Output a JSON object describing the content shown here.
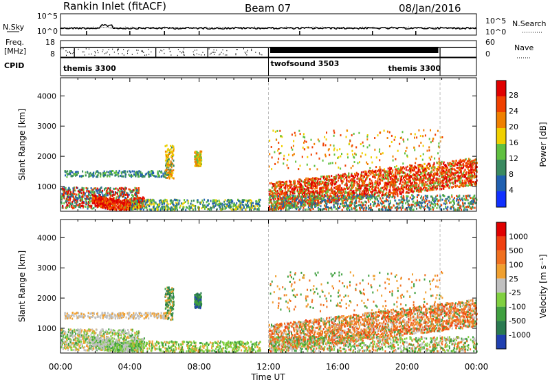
{
  "header": {
    "station": "Rankin Inlet (fitACF)",
    "beam": "Beam 07",
    "date": "08/Jan/2016"
  },
  "top_panel": {
    "left_label": "N.Sky",
    "right_label": "N.Search",
    "left_ticks": [
      "10^5",
      "10^0"
    ],
    "right_ticks": [
      "10^5",
      "10^0"
    ]
  },
  "freq_panel": {
    "left_label_1": "Freq.",
    "left_label_2": "[MHz]",
    "right_label": "Nave",
    "left_ticks": [
      "18",
      "8"
    ],
    "right_ticks": [
      "60",
      "0"
    ]
  },
  "cpid": {
    "label": "CPID",
    "segments": [
      {
        "name": "themis 3300",
        "start": 0,
        "end": 12
      },
      {
        "name": "twofsound 3503",
        "start": 12,
        "end": 21.9
      },
      {
        "name": "themis 3300",
        "start": 21.9,
        "end": 24
      }
    ]
  },
  "chart_data": [
    {
      "type": "heatmap",
      "title": "",
      "xlabel": "Time UT",
      "ylabel": "Slant Range [km]",
      "xlim": [
        0,
        24
      ],
      "ylim": [
        180,
        4600
      ],
      "x_tick_labels": [
        "00:00",
        "04:00",
        "08:00",
        "12:00",
        "16:00",
        "20:00",
        "00:00"
      ],
      "y_tick_labels": [
        "1000",
        "2000",
        "3000",
        "4000"
      ],
      "y_ticks": [
        1000,
        2000,
        3000,
        4000
      ],
      "colorbar": {
        "label": "Power [dB]",
        "tick_labels": [
          "4",
          "8",
          "12",
          "16",
          "20",
          "24",
          "28"
        ],
        "colors": [
          "#1030ff",
          "#2060b0",
          "#3a8a60",
          "#60c040",
          "#f0d000",
          "#f08000",
          "#f04000",
          "#e00000"
        ]
      },
      "dashed_vertical_lines_hours": [
        12,
        21.9
      ]
    },
    {
      "type": "heatmap",
      "title": "",
      "xlabel": "Time UT",
      "ylabel": "Slant Range [km]",
      "xlim": [
        0,
        24
      ],
      "ylim": [
        180,
        4600
      ],
      "x_tick_labels": [
        "00:00",
        "04:00",
        "08:00",
        "12:00",
        "16:00",
        "20:00",
        "00:00"
      ],
      "y_tick_labels": [
        "1000",
        "2000",
        "3000",
        "4000"
      ],
      "y_ticks": [
        1000,
        2000,
        3000,
        4000
      ],
      "colorbar": {
        "label": "Velocity [m s⁻¹]",
        "tick_labels": [
          "1000",
          "500",
          "100",
          "25",
          "-25",
          "-100",
          "-500",
          "-1000"
        ],
        "colors": [
          "#2040b0",
          "#2a7a50",
          "#40a040",
          "#80d040",
          "#c0c0c0",
          "#f0a030",
          "#f07020",
          "#f04010",
          "#e00000"
        ]
      },
      "dashed_vertical_lines_hours": [
        12,
        21.9
      ]
    }
  ]
}
